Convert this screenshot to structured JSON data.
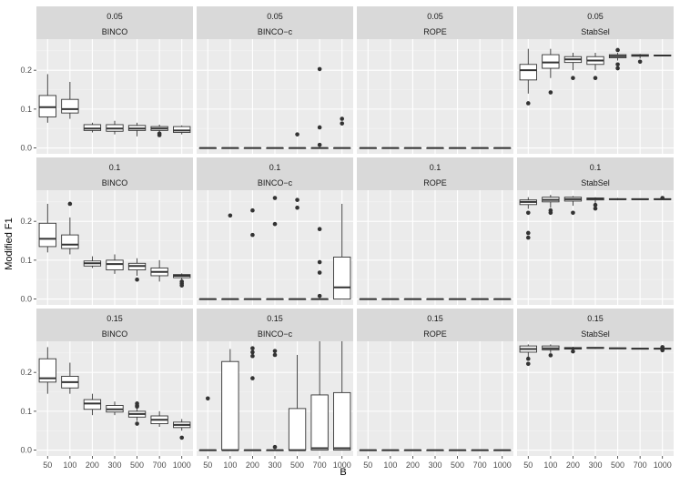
{
  "chart_data": {
    "type": "boxplot",
    "xlabel": "B",
    "ylabel": "Modified F1",
    "categories": [
      "50",
      "100",
      "200",
      "300",
      "500",
      "700",
      "1000"
    ],
    "y_ticks": [
      0.0,
      0.1,
      0.2
    ],
    "y_tick_labels": [
      "0.0",
      "0.1",
      "0.2"
    ],
    "ylim": [
      -0.015,
      0.28
    ],
    "facet_rows": [
      "0.05",
      "0.1",
      "0.15"
    ],
    "facet_cols": [
      "BINCO",
      "BINCO−c",
      "ROPE",
      "StabSel"
    ],
    "panels": [
      {
        "row": 0,
        "col": 0,
        "boxes": [
          {
            "min": 0.065,
            "q1": 0.08,
            "med": 0.105,
            "q3": 0.135,
            "max": 0.19,
            "out": []
          },
          {
            "min": 0.075,
            "q1": 0.09,
            "med": 0.1,
            "q3": 0.125,
            "max": 0.17,
            "out": []
          },
          {
            "min": 0.04,
            "q1": 0.045,
            "med": 0.05,
            "q3": 0.06,
            "max": 0.065,
            "out": []
          },
          {
            "min": 0.035,
            "q1": 0.043,
            "med": 0.05,
            "q3": 0.06,
            "max": 0.07,
            "out": []
          },
          {
            "min": 0.03,
            "q1": 0.045,
            "med": 0.05,
            "q3": 0.058,
            "max": 0.065,
            "out": []
          },
          {
            "min": 0.04,
            "q1": 0.045,
            "med": 0.05,
            "q3": 0.055,
            "max": 0.06,
            "out": [
              0.033,
              0.037
            ]
          },
          {
            "min": 0.035,
            "q1": 0.04,
            "med": 0.045,
            "q3": 0.055,
            "max": 0.058,
            "out": []
          }
        ]
      },
      {
        "row": 0,
        "col": 1,
        "boxes": [
          {
            "min": 0,
            "q1": 0,
            "med": 0,
            "q3": 0,
            "max": 0,
            "out": []
          },
          {
            "min": 0,
            "q1": 0,
            "med": 0,
            "q3": 0,
            "max": 0,
            "out": []
          },
          {
            "min": 0,
            "q1": 0,
            "med": 0,
            "q3": 0,
            "max": 0,
            "out": []
          },
          {
            "min": 0,
            "q1": 0,
            "med": 0,
            "q3": 0,
            "max": 0,
            "out": []
          },
          {
            "min": 0,
            "q1": 0,
            "med": 0,
            "q3": 0,
            "max": 0,
            "out": [
              0.035
            ]
          },
          {
            "min": 0,
            "q1": 0,
            "med": 0,
            "q3": 0,
            "max": 0,
            "out": [
              0.203,
              0.053,
              0.008
            ]
          },
          {
            "min": 0,
            "q1": 0,
            "med": 0,
            "q3": 0,
            "max": 0,
            "out": [
              0.075,
              0.063
            ]
          }
        ]
      },
      {
        "row": 0,
        "col": 2,
        "boxes": [
          {
            "min": 0,
            "q1": 0,
            "med": 0,
            "q3": 0,
            "max": 0,
            "out": []
          },
          {
            "min": 0,
            "q1": 0,
            "med": 0,
            "q3": 0,
            "max": 0,
            "out": []
          },
          {
            "min": 0,
            "q1": 0,
            "med": 0,
            "q3": 0,
            "max": 0,
            "out": []
          },
          {
            "min": 0,
            "q1": 0,
            "med": 0,
            "q3": 0,
            "max": 0,
            "out": []
          },
          {
            "min": 0,
            "q1": 0,
            "med": 0,
            "q3": 0,
            "max": 0,
            "out": []
          },
          {
            "min": 0,
            "q1": 0,
            "med": 0,
            "q3": 0,
            "max": 0,
            "out": []
          },
          {
            "min": 0,
            "q1": 0,
            "med": 0,
            "q3": 0,
            "max": 0,
            "out": []
          }
        ]
      },
      {
        "row": 0,
        "col": 3,
        "boxes": [
          {
            "min": 0.14,
            "q1": 0.175,
            "med": 0.2,
            "q3": 0.215,
            "max": 0.255,
            "out": [
              0.115
            ]
          },
          {
            "min": 0.18,
            "q1": 0.205,
            "med": 0.22,
            "q3": 0.24,
            "max": 0.255,
            "out": [
              0.143
            ]
          },
          {
            "min": 0.2,
            "q1": 0.22,
            "med": 0.228,
            "q3": 0.235,
            "max": 0.245,
            "out": [
              0.18
            ]
          },
          {
            "min": 0.2,
            "q1": 0.215,
            "med": 0.225,
            "q3": 0.235,
            "max": 0.245,
            "out": [
              0.18
            ]
          },
          {
            "min": 0.225,
            "q1": 0.232,
            "med": 0.236,
            "q3": 0.24,
            "max": 0.245,
            "out": [
              0.252,
              0.215,
              0.205
            ]
          },
          {
            "min": 0.23,
            "q1": 0.236,
            "med": 0.238,
            "q3": 0.24,
            "max": 0.242,
            "out": [
              0.222
            ]
          },
          {
            "min": 0.236,
            "q1": 0.237,
            "med": 0.238,
            "q3": 0.239,
            "max": 0.24,
            "out": []
          }
        ]
      },
      {
        "row": 1,
        "col": 0,
        "boxes": [
          {
            "min": 0.12,
            "q1": 0.135,
            "med": 0.155,
            "q3": 0.195,
            "max": 0.245,
            "out": []
          },
          {
            "min": 0.115,
            "q1": 0.13,
            "med": 0.14,
            "q3": 0.165,
            "max": 0.21,
            "out": [
              0.245
            ]
          },
          {
            "min": 0.08,
            "q1": 0.085,
            "med": 0.092,
            "q3": 0.098,
            "max": 0.11,
            "out": []
          },
          {
            "min": 0.065,
            "q1": 0.075,
            "med": 0.09,
            "q3": 0.1,
            "max": 0.115,
            "out": []
          },
          {
            "min": 0.06,
            "q1": 0.075,
            "med": 0.085,
            "q3": 0.092,
            "max": 0.105,
            "out": [
              0.05
            ]
          },
          {
            "min": 0.045,
            "q1": 0.06,
            "med": 0.07,
            "q3": 0.08,
            "max": 0.1,
            "out": []
          },
          {
            "min": 0.05,
            "q1": 0.055,
            "med": 0.06,
            "q3": 0.063,
            "max": 0.066,
            "out": [
              0.045,
              0.04,
              0.035
            ]
          }
        ]
      },
      {
        "row": 1,
        "col": 1,
        "boxes": [
          {
            "min": 0,
            "q1": 0,
            "med": 0,
            "q3": 0,
            "max": 0,
            "out": []
          },
          {
            "min": 0,
            "q1": 0,
            "med": 0,
            "q3": 0,
            "max": 0,
            "out": [
              0.215
            ]
          },
          {
            "min": 0,
            "q1": 0,
            "med": 0,
            "q3": 0,
            "max": 0,
            "out": [
              0.228,
              0.165
            ]
          },
          {
            "min": 0,
            "q1": 0,
            "med": 0,
            "q3": 0,
            "max": 0,
            "out": [
              0.26,
              0.193
            ]
          },
          {
            "min": 0,
            "q1": 0,
            "med": 0,
            "q3": 0,
            "max": 0,
            "out": [
              0.255,
              0.235
            ]
          },
          {
            "min": 0,
            "q1": 0,
            "med": 0,
            "q3": 0,
            "max": 0,
            "out": [
              0.18,
              0.095,
              0.068,
              0.008
            ]
          },
          {
            "min": 0,
            "q1": 0,
            "med": 0.03,
            "q3": 0.108,
            "max": 0.245,
            "out": []
          }
        ]
      },
      {
        "row": 1,
        "col": 2,
        "boxes": [
          {
            "min": 0,
            "q1": 0,
            "med": 0,
            "q3": 0,
            "max": 0,
            "out": []
          },
          {
            "min": 0,
            "q1": 0,
            "med": 0,
            "q3": 0,
            "max": 0,
            "out": []
          },
          {
            "min": 0,
            "q1": 0,
            "med": 0,
            "q3": 0,
            "max": 0,
            "out": []
          },
          {
            "min": 0,
            "q1": 0,
            "med": 0,
            "q3": 0,
            "max": 0,
            "out": []
          },
          {
            "min": 0,
            "q1": 0,
            "med": 0,
            "q3": 0,
            "max": 0,
            "out": []
          },
          {
            "min": 0,
            "q1": 0,
            "med": 0,
            "q3": 0,
            "max": 0,
            "out": []
          },
          {
            "min": 0,
            "q1": 0,
            "med": 0,
            "q3": 0,
            "max": 0,
            "out": []
          }
        ]
      },
      {
        "row": 1,
        "col": 3,
        "boxes": [
          {
            "min": 0.232,
            "q1": 0.243,
            "med": 0.25,
            "q3": 0.255,
            "max": 0.262,
            "out": [
              0.222,
              0.17,
              0.158
            ]
          },
          {
            "min": 0.235,
            "q1": 0.25,
            "med": 0.255,
            "q3": 0.262,
            "max": 0.268,
            "out": [
              0.228,
              0.222
            ]
          },
          {
            "min": 0.24,
            "q1": 0.252,
            "med": 0.257,
            "q3": 0.262,
            "max": 0.265,
            "out": [
              0.222
            ]
          },
          {
            "min": 0.245,
            "q1": 0.255,
            "med": 0.258,
            "q3": 0.26,
            "max": 0.262,
            "out": [
              0.242,
              0.233
            ]
          },
          {
            "min": 0.254,
            "q1": 0.256,
            "med": 0.257,
            "q3": 0.258,
            "max": 0.26,
            "out": []
          },
          {
            "min": 0.255,
            "q1": 0.256,
            "med": 0.257,
            "q3": 0.258,
            "max": 0.259,
            "out": []
          },
          {
            "min": 0.255,
            "q1": 0.256,
            "med": 0.257,
            "q3": 0.258,
            "max": 0.259,
            "out": [
              0.26
            ]
          }
        ]
      },
      {
        "row": 2,
        "col": 0,
        "boxes": [
          {
            "min": 0.145,
            "q1": 0.175,
            "med": 0.185,
            "q3": 0.235,
            "max": 0.265,
            "out": []
          },
          {
            "min": 0.145,
            "q1": 0.16,
            "med": 0.175,
            "q3": 0.19,
            "max": 0.225,
            "out": []
          },
          {
            "min": 0.09,
            "q1": 0.105,
            "med": 0.12,
            "q3": 0.13,
            "max": 0.145,
            "out": []
          },
          {
            "min": 0.09,
            "q1": 0.098,
            "med": 0.105,
            "q3": 0.115,
            "max": 0.125,
            "out": []
          },
          {
            "min": 0.075,
            "q1": 0.085,
            "med": 0.093,
            "q3": 0.1,
            "max": 0.108,
            "out": [
              0.12,
              0.115,
              0.112,
              0.068
            ]
          },
          {
            "min": 0.06,
            "q1": 0.068,
            "med": 0.078,
            "q3": 0.088,
            "max": 0.1,
            "out": []
          },
          {
            "min": 0.05,
            "q1": 0.058,
            "med": 0.065,
            "q3": 0.072,
            "max": 0.08,
            "out": [
              0.032
            ]
          }
        ]
      },
      {
        "row": 2,
        "col": 1,
        "boxes": [
          {
            "min": 0,
            "q1": 0,
            "med": 0,
            "q3": 0,
            "max": 0,
            "out": [
              0.133
            ]
          },
          {
            "min": 0,
            "q1": 0,
            "med": 0,
            "q3": 0.228,
            "max": 0.26,
            "out": []
          },
          {
            "min": 0,
            "q1": 0,
            "med": 0,
            "q3": 0,
            "max": 0,
            "out": [
              0.262,
              0.252,
              0.242,
              0.185
            ]
          },
          {
            "min": 0,
            "q1": 0,
            "med": 0,
            "q3": 0,
            "max": 0,
            "out": [
              0.255,
              0.245,
              0.008
            ]
          },
          {
            "min": 0,
            "q1": 0,
            "med": 0,
            "q3": 0.107,
            "max": 0.245,
            "out": []
          },
          {
            "min": 0,
            "q1": 0,
            "med": 0.005,
            "q3": 0.142,
            "max": 0.28,
            "out": []
          },
          {
            "min": 0,
            "q1": 0,
            "med": 0.005,
            "q3": 0.148,
            "max": 0.28,
            "out": []
          }
        ]
      },
      {
        "row": 2,
        "col": 2,
        "boxes": [
          {
            "min": 0,
            "q1": 0,
            "med": 0,
            "q3": 0,
            "max": 0,
            "out": []
          },
          {
            "min": 0,
            "q1": 0,
            "med": 0,
            "q3": 0,
            "max": 0,
            "out": []
          },
          {
            "min": 0,
            "q1": 0,
            "med": 0,
            "q3": 0,
            "max": 0,
            "out": []
          },
          {
            "min": 0,
            "q1": 0,
            "med": 0,
            "q3": 0,
            "max": 0,
            "out": []
          },
          {
            "min": 0,
            "q1": 0,
            "med": 0,
            "q3": 0,
            "max": 0,
            "out": []
          },
          {
            "min": 0,
            "q1": 0,
            "med": 0,
            "q3": 0,
            "max": 0,
            "out": []
          },
          {
            "min": 0,
            "q1": 0,
            "med": 0,
            "q3": 0,
            "max": 0,
            "out": []
          }
        ]
      },
      {
        "row": 2,
        "col": 3,
        "boxes": [
          {
            "min": 0.24,
            "q1": 0.252,
            "med": 0.26,
            "q3": 0.268,
            "max": 0.272,
            "out": [
              0.235,
              0.222
            ]
          },
          {
            "min": 0.25,
            "q1": 0.258,
            "med": 0.262,
            "q3": 0.268,
            "max": 0.272,
            "out": [
              0.244
            ]
          },
          {
            "min": 0.257,
            "q1": 0.26,
            "med": 0.262,
            "q3": 0.264,
            "max": 0.266,
            "out": [
              0.254
            ]
          },
          {
            "min": 0.26,
            "q1": 0.262,
            "med": 0.263,
            "q3": 0.264,
            "max": 0.265,
            "out": []
          },
          {
            "min": 0.26,
            "q1": 0.261,
            "med": 0.262,
            "q3": 0.263,
            "max": 0.264,
            "out": []
          },
          {
            "min": 0.259,
            "q1": 0.26,
            "med": 0.261,
            "q3": 0.262,
            "max": 0.263,
            "out": []
          },
          {
            "min": 0.258,
            "q1": 0.26,
            "med": 0.261,
            "q3": 0.262,
            "max": 0.263,
            "out": [
              0.265,
              0.257
            ]
          }
        ]
      }
    ]
  },
  "colors": {
    "panel_bg": "#ebebeb",
    "strip_bg": "#d9d9d9",
    "grid_major": "#ffffff",
    "grid_minor": "#f4f4f4",
    "box_fill": "#ffffff",
    "box_line": "#333333",
    "text_strip": "#1a1a1a",
    "text_axis": "#4d4d4d",
    "text_title": "#000000"
  }
}
